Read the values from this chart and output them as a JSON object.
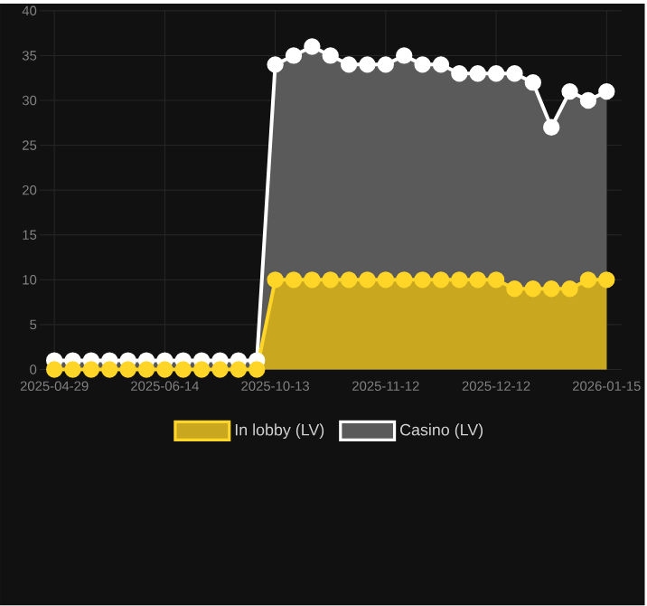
{
  "chart_data": {
    "type": "area",
    "categories": [
      "2025-04-29",
      null,
      null,
      null,
      null,
      null,
      "2025-06-14",
      null,
      null,
      null,
      null,
      null,
      "2025-10-13",
      null,
      null,
      null,
      null,
      null,
      "2025-11-12",
      null,
      null,
      null,
      null,
      null,
      "2025-12-12",
      null,
      null,
      null,
      null,
      null,
      "2026-01-15"
    ],
    "series": [
      {
        "name": "In lobby (LV)",
        "color": "#c9a820",
        "values": [
          0,
          0,
          0,
          0,
          0,
          0,
          0,
          0,
          0,
          0,
          0,
          0,
          10,
          10,
          10,
          10,
          10,
          10,
          10,
          10,
          10,
          10,
          10,
          10,
          10,
          9,
          9,
          9,
          9,
          10,
          10
        ]
      },
      {
        "name": "Casino (LV)",
        "color": "#5a5a5a",
        "values": [
          1,
          1,
          1,
          1,
          1,
          1,
          1,
          1,
          1,
          1,
          1,
          1,
          34,
          35,
          36,
          35,
          34,
          34,
          34,
          35,
          34,
          34,
          33,
          33,
          33,
          33,
          32,
          27,
          31,
          30,
          31
        ]
      }
    ],
    "ylim": [
      0,
      40
    ],
    "yticks": [
      0,
      5,
      10,
      15,
      20,
      25,
      30,
      35,
      40
    ],
    "grid": true,
    "legend": "bottom",
    "marker": "circle"
  }
}
